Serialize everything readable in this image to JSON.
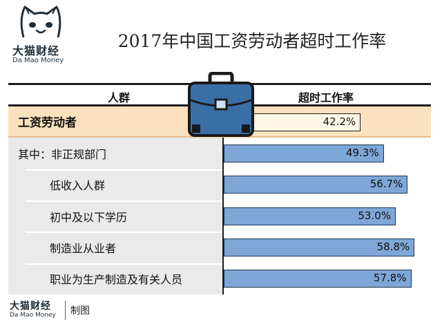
{
  "brand": {
    "name_cn": "大猫财经",
    "name_en": "Da Mao Money"
  },
  "footer": {
    "brand_cn": "大猫财经",
    "brand_en": "Da Mao Money",
    "made_by": "制图"
  },
  "colors": {
    "bar": "#7ea6d6",
    "bar_border": "#1c3550",
    "highlight": "#fbe2bd",
    "briefcase": "#3a6fa5"
  },
  "icons": [
    "cat-logo-icon",
    "briefcase-icon"
  ],
  "chart_data": {
    "type": "bar",
    "orientation": "horizontal",
    "title": "2017年中国工资劳动者超时工作率",
    "column_headers": {
      "category": "人群",
      "value": "超时工作率"
    },
    "categories": [
      "工资劳动者",
      "其中：非正规部门",
      "低收入人群",
      "初中及以下学历",
      "制造业从业者",
      "职业为生产制造及有关人员"
    ],
    "values": [
      42.2,
      49.3,
      56.7,
      53.0,
      58.8,
      57.8
    ],
    "value_labels": [
      "42.2%",
      "49.3%",
      "56.7%",
      "53.0%",
      "58.8%",
      "57.8%"
    ],
    "unit": "%",
    "xlim": [
      0,
      63
    ],
    "highlight_index": 0,
    "grid": false,
    "legend": "none"
  }
}
